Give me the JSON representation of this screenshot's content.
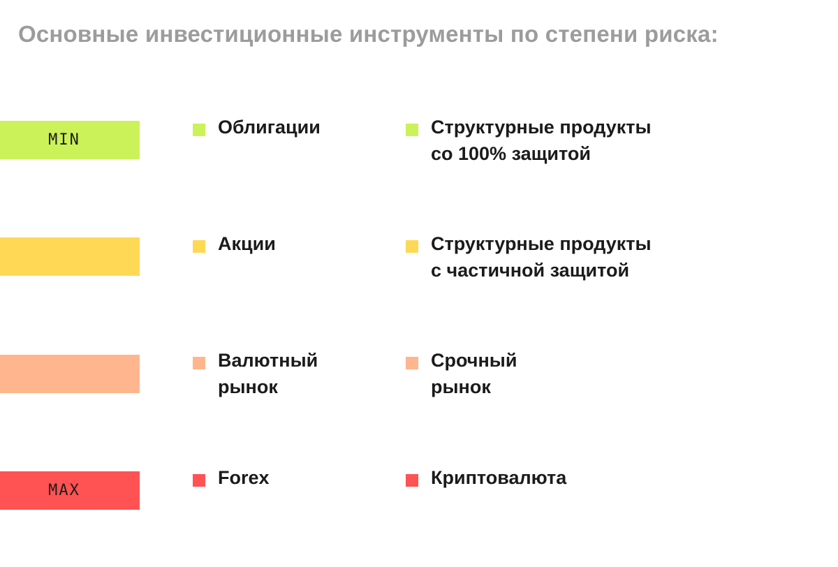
{
  "title": "Основные инвестиционные инструменты по степени риска:",
  "rows": [
    {
      "level_label": "MIN",
      "color": "#ccf25a",
      "items": [
        {
          "lines": [
            "Облигации"
          ]
        },
        {
          "lines": [
            "Структурные продукты",
            "со 100% защитой"
          ]
        }
      ]
    },
    {
      "level_label": "",
      "color": "#ffd856",
      "items": [
        {
          "lines": [
            "Акции"
          ]
        },
        {
          "lines": [
            "Структурные продукты",
            "с частичной защитой"
          ]
        }
      ]
    },
    {
      "level_label": "",
      "color": "#ffb68e",
      "items": [
        {
          "lines": [
            "Валютный",
            "рынок"
          ]
        },
        {
          "lines": [
            "Срочный",
            "рынок"
          ]
        }
      ]
    },
    {
      "level_label": "MAX",
      "color": "#ff5252",
      "items": [
        {
          "lines": [
            "Forex"
          ]
        },
        {
          "lines": [
            "Криптовалюта"
          ]
        }
      ]
    }
  ]
}
